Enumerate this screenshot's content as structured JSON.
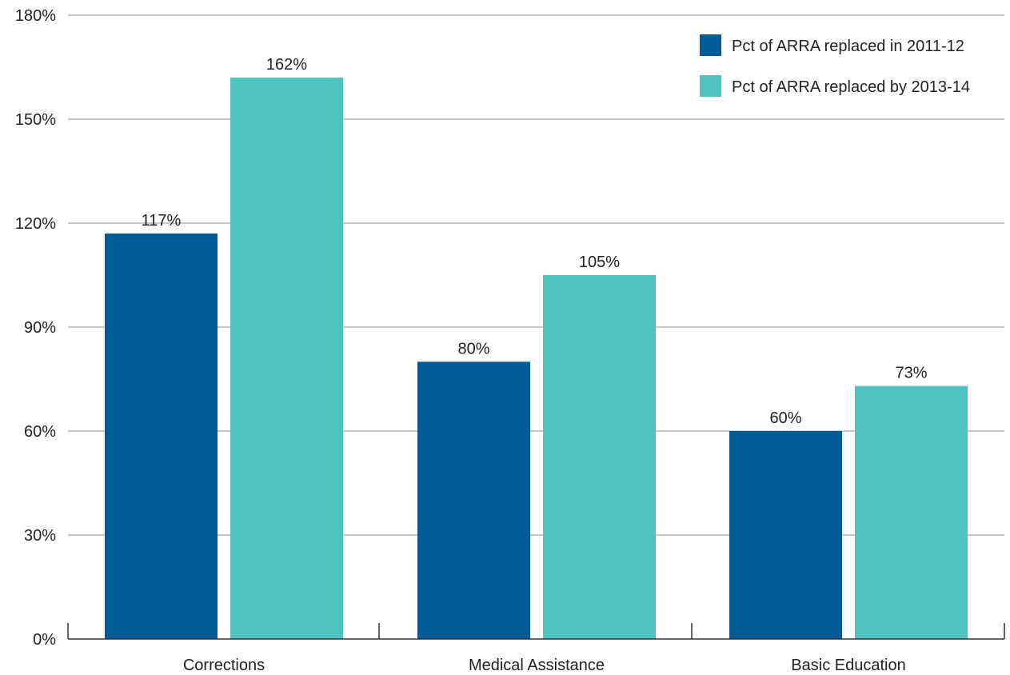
{
  "chart_data": {
    "type": "bar",
    "categories": [
      "Corrections",
      "Medical Assistance",
      "Basic Education"
    ],
    "series": [
      {
        "name": "Pct of ARRA replaced in 2011-12",
        "values": [
          117,
          80,
          60
        ],
        "labels": [
          "117%",
          "80%",
          "60%"
        ],
        "color": "#005b96"
      },
      {
        "name": "Pct of ARRA replaced by 2013-14",
        "values": [
          162,
          105,
          73
        ],
        "labels": [
          "162%",
          "105%",
          "73%"
        ],
        "color": "#4fc2c2"
      }
    ],
    "y_ticks": [
      0,
      30,
      60,
      90,
      120,
      150,
      180
    ],
    "y_tick_labels": [
      "0%",
      "30%",
      "60%",
      "90%",
      "120%",
      "150%",
      "180%"
    ],
    "ylim": [
      0,
      180
    ],
    "grid": true,
    "legend_position": "top-right",
    "title": "",
    "xlabel": "",
    "ylabel": ""
  }
}
